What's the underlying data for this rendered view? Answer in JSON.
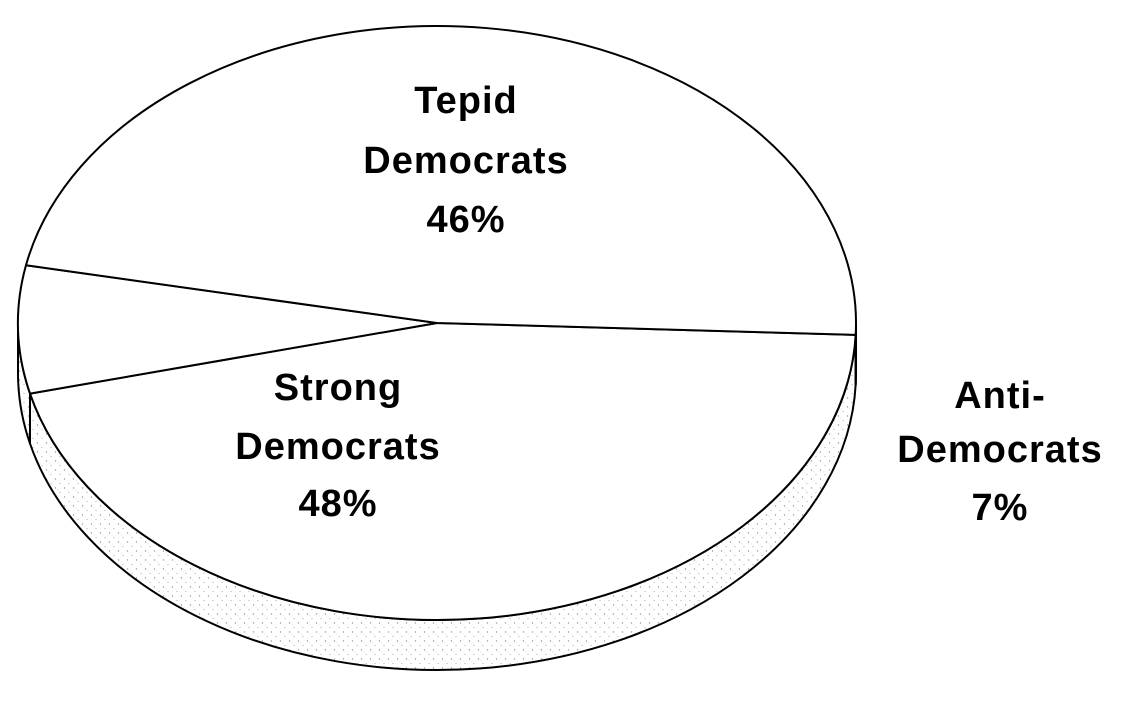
{
  "chart_data": {
    "type": "pie",
    "three_d": true,
    "slices": [
      {
        "name_lines": [
          "Tepid",
          "Democrats"
        ],
        "value": 46,
        "value_label": "46%",
        "label_position": "inside"
      },
      {
        "name_lines": [
          "Anti-",
          "Democrats"
        ],
        "value": 7,
        "value_label": "7%",
        "label_position": "outside-right"
      },
      {
        "name_lines": [
          "Strong",
          "Democrats"
        ],
        "value": 48,
        "value_label": "48%",
        "label_position": "inside"
      }
    ],
    "colors": {
      "top": "#ffffff",
      "outline": "#000000",
      "side_texture": "#9a9a9a"
    }
  }
}
